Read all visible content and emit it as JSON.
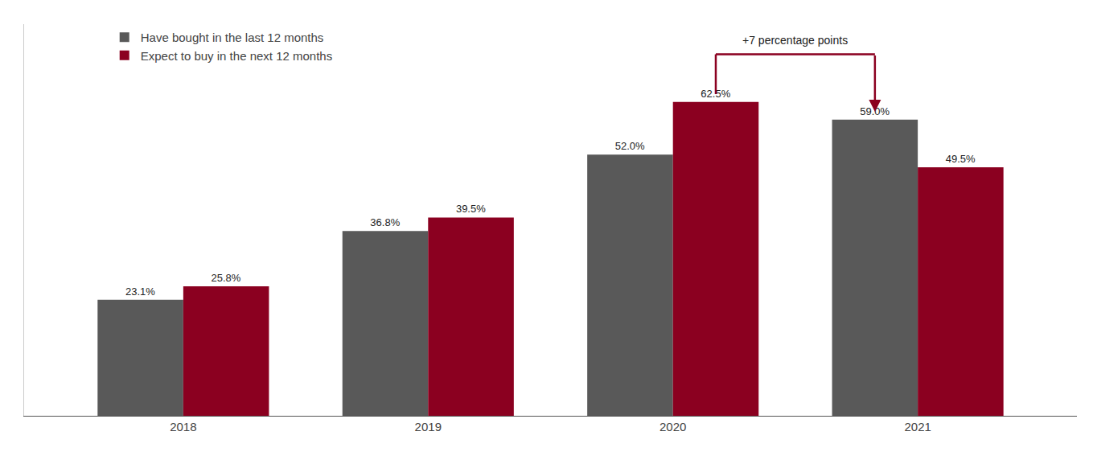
{
  "chart_data": {
    "type": "bar",
    "categories": [
      "2018",
      "2019",
      "2020",
      "2021"
    ],
    "series": [
      {
        "name": "Have bought in the last 12 months",
        "color": "#595959",
        "values": [
          23.1,
          36.8,
          52.0,
          59.0
        ],
        "value_labels": [
          "23.1%",
          "36.8%",
          "52.0%",
          "59.0%"
        ]
      },
      {
        "name": "Expect to buy in the next 12 months",
        "color": "#8B0020",
        "values": [
          25.8,
          39.5,
          62.5,
          49.5
        ],
        "value_labels": [
          "25.8%",
          "39.5%",
          "62.5%",
          "49.5%"
        ]
      }
    ],
    "ylim": [
      0,
      78
    ],
    "annotations": [
      "+7 percentage points"
    ],
    "data_labels": true,
    "tick_labels": "x",
    "grid": false,
    "legend": "upper left"
  }
}
